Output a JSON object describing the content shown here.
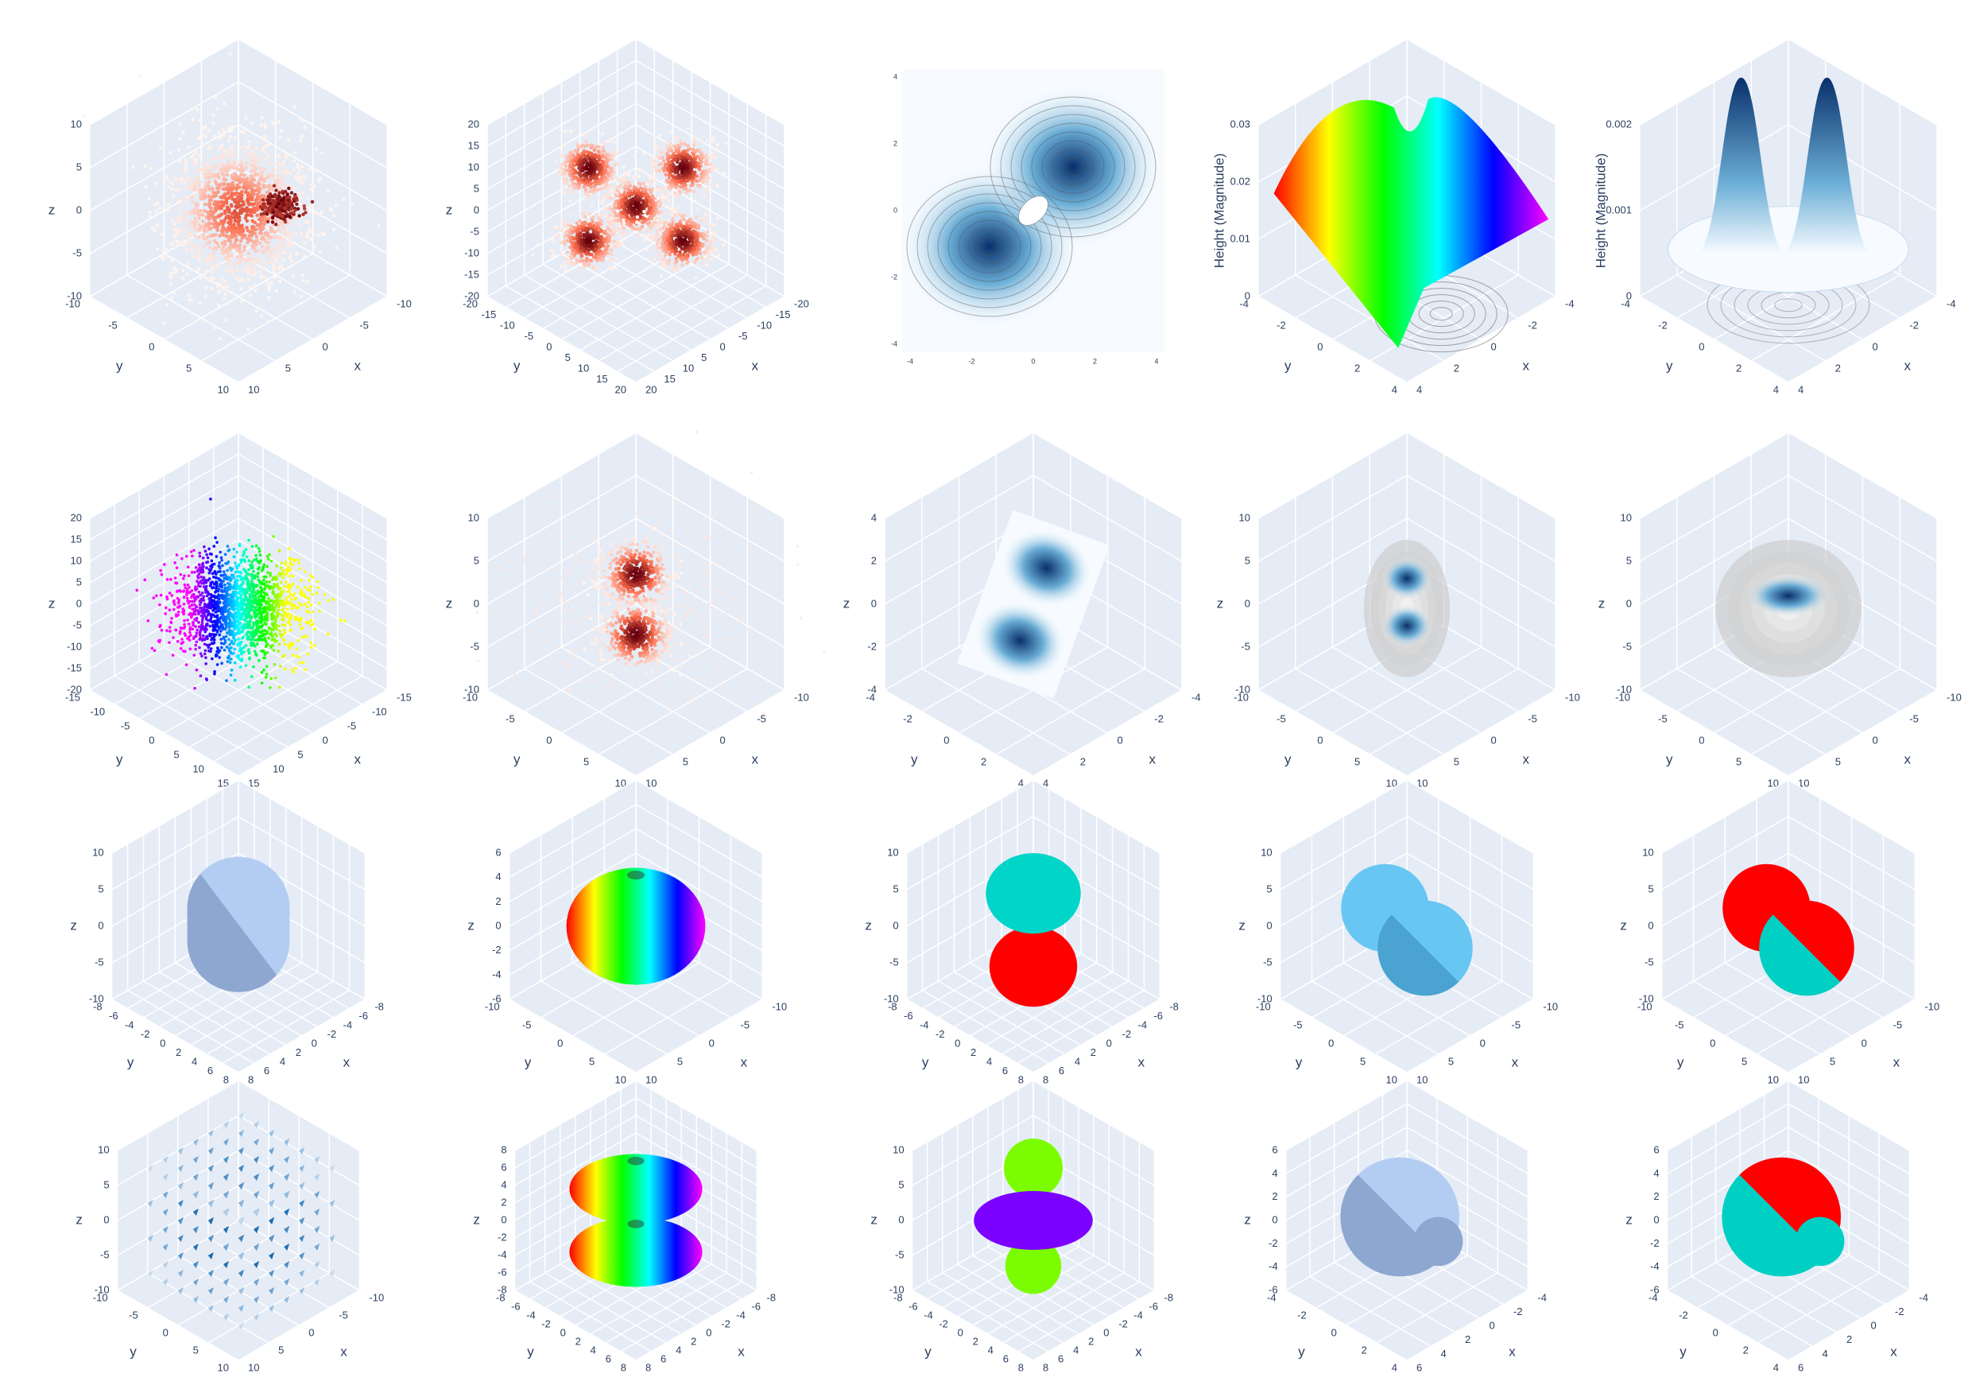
{
  "panels": [
    {
      "kind": "cloud",
      "colors": [
        "#fff5f0",
        "#fb6a4a",
        "#67000d"
      ],
      "z_title": "z",
      "x_title": "x",
      "y_title": "y",
      "zticks": [
        10,
        5,
        0,
        -5,
        -10
      ],
      "xticks": [
        -10,
        -5,
        0,
        5,
        10
      ],
      "yticks": [
        -10,
        -5,
        0,
        5,
        10
      ]
    },
    {
      "kind": "petals",
      "colors": [
        "#fff5f0",
        "#fb6a4a",
        "#67000d"
      ],
      "z_title": "z",
      "x_title": "x",
      "y_title": "y",
      "zticks": [
        20,
        15,
        10,
        5,
        0,
        -5,
        -10,
        -15,
        -20
      ],
      "xticks": [
        -20,
        -15,
        -10,
        -5,
        0,
        5,
        10,
        15,
        20
      ],
      "yticks": [
        -20,
        -15,
        -10,
        -5,
        0,
        5,
        10,
        15,
        20
      ]
    },
    {
      "kind": "contour",
      "colors": [
        "#f7fbff",
        "#6baed6",
        "#08306b"
      ],
      "xticks": [
        -4,
        -2,
        0,
        2,
        4
      ],
      "yticks": [
        4,
        2,
        0,
        -2,
        -4
      ]
    },
    {
      "kind": "surface",
      "colors": [
        "#ff0000",
        "#ffff00",
        "#00ff00",
        "#00ffff",
        "#0000ff",
        "#ff00ff"
      ],
      "z_title": "Height (Magnitude)",
      "x_title": "x",
      "y_title": "y",
      "zticks": [
        0.03,
        0.02,
        0.01,
        0
      ],
      "xticks": [
        -4,
        -2,
        0,
        2,
        4
      ],
      "yticks": [
        -4,
        -2,
        0,
        2,
        4
      ]
    },
    {
      "kind": "peaks",
      "colors": [
        "#f7fbff",
        "#6baed6",
        "#08306b"
      ],
      "z_title": "Height (Magnitude)",
      "x_title": "x",
      "y_title": "y",
      "zticks": [
        0.002,
        0.001,
        0
      ],
      "xticks": [
        -4,
        -2,
        0,
        2,
        4
      ],
      "yticks": [
        -4,
        -2,
        0,
        2,
        4
      ]
    },
    {
      "kind": "rainbow",
      "colors": [
        "#ff00ff",
        "#0000ff",
        "#00ffff",
        "#00ff00",
        "#ffff00"
      ],
      "z_title": "z",
      "x_title": "x",
      "y_title": "y",
      "zticks": [
        20,
        15,
        10,
        5,
        0,
        -5,
        -10,
        -15,
        -20
      ],
      "xticks": [
        -15,
        -10,
        -5,
        0,
        5,
        10,
        15
      ],
      "yticks": [
        -15,
        -10,
        -5,
        0,
        5,
        10,
        15
      ]
    },
    {
      "kind": "twin",
      "colors": [
        "#fff5f0",
        "#fb6a4a",
        "#67000d"
      ],
      "z_title": "z",
      "x_title": "x",
      "y_title": "y",
      "zticks": [
        10,
        5,
        0,
        -5,
        -10
      ],
      "xticks": [
        -10,
        -5,
        0,
        5,
        10
      ],
      "yticks": [
        -10,
        -5,
        0,
        5,
        10
      ]
    },
    {
      "kind": "plane",
      "colors": [
        "#f7fbff",
        "#6baed6",
        "#08306b"
      ],
      "z_title": "z",
      "x_title": "x",
      "y_title": "y",
      "zticks": [
        4,
        2,
        0,
        -2,
        -4
      ],
      "xticks": [
        -4,
        -2,
        0,
        2,
        4
      ],
      "yticks": [
        -4,
        -2,
        0,
        2,
        4
      ]
    },
    {
      "kind": "rings",
      "colors": [
        "#f0f0f0",
        "#6baed6",
        "#08306b"
      ],
      "z_title": "z",
      "x_title": "x",
      "y_title": "y",
      "zticks": [
        10,
        5,
        0,
        -5,
        -10
      ],
      "xticks": [
        -10,
        -5,
        0,
        5,
        10
      ],
      "yticks": [
        -10,
        -5,
        0,
        5,
        10
      ]
    },
    {
      "kind": "arch",
      "colors": [
        "#f0f0f0",
        "#6baed6",
        "#08306b"
      ],
      "z_title": "z",
      "x_title": "x",
      "y_title": "y",
      "zticks": [
        10,
        5,
        0,
        -5,
        -10
      ],
      "xticks": [
        -10,
        -5,
        0,
        5,
        10
      ],
      "yticks": [
        -10,
        -5,
        0,
        5,
        10
      ]
    },
    {
      "kind": "sphere",
      "colors": [
        "#b3cdf2",
        "#8da7d0"
      ],
      "z_title": "z",
      "x_title": "x",
      "y_title": "y",
      "zticks": [
        10,
        5,
        0,
        -5,
        -10
      ],
      "xticks": [
        -8,
        -6,
        -4,
        -2,
        0,
        2,
        4,
        6,
        8
      ],
      "yticks": [
        -8,
        -6,
        -4,
        -2,
        0,
        2,
        4,
        6,
        8
      ]
    },
    {
      "kind": "torus",
      "colors": [
        "#ff0000",
        "#ffff00",
        "#00ff00",
        "#00ffff",
        "#0000ff",
        "#ff00ff"
      ],
      "z_title": "z",
      "x_title": "x",
      "y_title": "y",
      "zticks": [
        6,
        4,
        2,
        0,
        -2,
        -4,
        -6
      ],
      "xticks": [
        -10,
        -5,
        0,
        5,
        10
      ],
      "yticks": [
        -10,
        -5,
        0,
        5,
        10
      ]
    },
    {
      "kind": "lobes",
      "colors": [
        "#00d5c8",
        "#ff0000"
      ],
      "z_title": "z",
      "x_title": "x",
      "y_title": "y",
      "zticks": [
        10,
        5,
        0,
        -5,
        -10
      ],
      "xticks": [
        -8,
        -6,
        -4,
        -2,
        0,
        2,
        4,
        6,
        8
      ],
      "yticks": [
        -8,
        -6,
        -4,
        -2,
        0,
        2,
        4,
        6,
        8
      ]
    },
    {
      "kind": "pair",
      "colors": [
        "#68c6f2",
        "#4aa3d0"
      ],
      "z_title": "z",
      "x_title": "x",
      "y_title": "y",
      "zticks": [
        10,
        5,
        0,
        -5,
        -10
      ],
      "xticks": [
        -10,
        -5,
        0,
        5,
        10
      ],
      "yticks": [
        -10,
        -5,
        0,
        5,
        10
      ]
    },
    {
      "kind": "pair",
      "colors": [
        "#ff0000",
        "#00cfc4"
      ],
      "z_title": "z",
      "x_title": "x",
      "y_title": "y",
      "zticks": [
        10,
        5,
        0,
        -5,
        -10
      ],
      "xticks": [
        -10,
        -5,
        0,
        5,
        10
      ],
      "yticks": [
        -10,
        -5,
        0,
        5,
        10
      ]
    },
    {
      "kind": "cones",
      "colors": [
        "#c6dbef",
        "#2171b5",
        "#08306b"
      ],
      "z_title": "z",
      "x_title": "x",
      "y_title": "y",
      "zticks": [
        10,
        5,
        0,
        -5,
        -10
      ],
      "xticks": [
        -10,
        -5,
        0,
        5,
        10
      ],
      "yticks": [
        -10,
        -5,
        0,
        5,
        10
      ]
    },
    {
      "kind": "torus2",
      "colors": [
        "#ff0000",
        "#ffff00",
        "#00ff00",
        "#00ffff",
        "#0000ff",
        "#ff00ff"
      ],
      "z_title": "z",
      "x_title": "x",
      "y_title": "y",
      "zticks": [
        8,
        6,
        4,
        2,
        0,
        -2,
        -4,
        -6,
        -8
      ],
      "xticks": [
        -8,
        -6,
        -4,
        -2,
        0,
        2,
        4,
        6,
        8
      ],
      "yticks": [
        -8,
        -6,
        -4,
        -2,
        0,
        2,
        4,
        6,
        8
      ]
    },
    {
      "kind": "dz",
      "colors": [
        "#7cfc00",
        "#7b00ff"
      ],
      "z_title": "z",
      "x_title": "x",
      "y_title": "y",
      "zticks": [
        10,
        5,
        0,
        -5,
        -10
      ],
      "xticks": [
        -8,
        -6,
        -4,
        -2,
        0,
        2,
        4,
        6,
        8
      ],
      "yticks": [
        -8,
        -6,
        -4,
        -2,
        0,
        2,
        4,
        6,
        8
      ]
    },
    {
      "kind": "bigsmall",
      "colors": [
        "#b3cdf2",
        "#8da7d0"
      ],
      "z_title": "z",
      "x_title": "x",
      "y_title": "y",
      "zticks": [
        6,
        4,
        2,
        0,
        -2,
        -4,
        -6
      ],
      "xticks": [
        -4,
        -2,
        0,
        2,
        4,
        6
      ],
      "yticks": [
        -4,
        -2,
        0,
        2,
        4
      ]
    },
    {
      "kind": "bigsmall",
      "colors": [
        "#ff0000",
        "#00cfc4"
      ],
      "z_title": "z",
      "x_title": "x",
      "y_title": "y",
      "zticks": [
        6,
        4,
        2,
        0,
        -2,
        -4,
        -6
      ],
      "xticks": [
        -4,
        -2,
        0,
        2,
        4,
        6
      ],
      "yticks": [
        -4,
        -2,
        0,
        2,
        4
      ]
    }
  ]
}
